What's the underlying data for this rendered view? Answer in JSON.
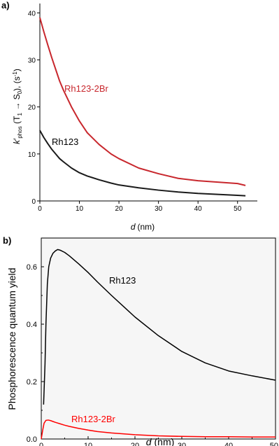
{
  "chart_data": [
    {
      "panel": "a)",
      "type": "line",
      "xlabel_italic": "d",
      "xlabel_unit": "(nm)",
      "ylabel_parts": {
        "k": "k",
        "prime": "′",
        "sub": "phos",
        "open": " (",
        "T": "T",
        "T_sub": "1",
        "arrow": " → ",
        "S": "S",
        "S_sub": "0",
        "close": "), (s",
        "exp": "-1",
        "end": ")"
      },
      "xlim": [
        0,
        55
      ],
      "ylim": [
        0,
        42
      ],
      "xticks": [
        0,
        10,
        20,
        30,
        40,
        50
      ],
      "yticks": [
        0,
        10,
        20,
        30,
        40
      ],
      "series": [
        {
          "name": "Rh123-2Br",
          "color": "#c8272d",
          "x": [
            0,
            1,
            2,
            3,
            4,
            5,
            6,
            8,
            10,
            12,
            15,
            18,
            20,
            25,
            30,
            35,
            40,
            45,
            50,
            52
          ],
          "y": [
            39,
            36,
            33.2,
            30.5,
            28,
            25.5,
            23.5,
            20,
            17,
            14.5,
            12,
            10,
            9,
            7,
            5.8,
            4.8,
            4.3,
            4,
            3.7,
            3.3
          ]
        },
        {
          "name": "Rh123",
          "color": "#1a1a1a",
          "x": [
            0,
            1,
            2,
            3,
            4,
            5,
            6,
            8,
            10,
            12,
            15,
            18,
            20,
            25,
            30,
            35,
            40,
            45,
            50,
            52
          ],
          "y": [
            15,
            13.5,
            12.2,
            11,
            10,
            9,
            8.3,
            7,
            6,
            5.3,
            4.5,
            3.8,
            3.4,
            2.8,
            2.3,
            1.9,
            1.6,
            1.4,
            1.2,
            1.1
          ]
        }
      ]
    },
    {
      "panel": "b)",
      "type": "line",
      "xlabel_italic": "d",
      "xlabel_unit": "(nm)",
      "ylabel": "Phosphorescence quantum yield",
      "xlim": [
        0,
        50
      ],
      "ylim": [
        0,
        0.7
      ],
      "xticks": [
        0,
        10,
        20,
        30,
        40,
        50
      ],
      "xtick_labels": [
        "0",
        "10",
        "20",
        "30",
        "40",
        "50"
      ],
      "yticks": [
        0,
        0.2,
        0.4,
        0.6
      ],
      "ytick_labels": [
        "0.0",
        "0.2",
        "0.4",
        "0.6"
      ],
      "series": [
        {
          "name": "Rh123",
          "color": "#000000",
          "x": [
            0.5,
            0.8,
            1,
            1.3,
            1.6,
            2,
            2.5,
            3,
            3.5,
            4,
            5,
            6,
            8,
            10,
            12,
            15,
            18,
            20,
            25,
            30,
            35,
            40,
            45,
            50
          ],
          "y": [
            0.12,
            0.26,
            0.4,
            0.54,
            0.6,
            0.63,
            0.647,
            0.655,
            0.66,
            0.658,
            0.65,
            0.638,
            0.61,
            0.58,
            0.547,
            0.5,
            0.455,
            0.425,
            0.36,
            0.305,
            0.265,
            0.237,
            0.22,
            0.205
          ]
        },
        {
          "name": "Rh123-2Br",
          "color": "#ff0000",
          "x": [
            0,
            0.3,
            0.6,
            1,
            1.5,
            2,
            2.5,
            3,
            4,
            5,
            6,
            8,
            10,
            12,
            15,
            20,
            25,
            30,
            35,
            40,
            45,
            50
          ],
          "y": [
            0.0,
            0.03,
            0.055,
            0.065,
            0.066,
            0.064,
            0.061,
            0.058,
            0.053,
            0.048,
            0.044,
            0.037,
            0.031,
            0.026,
            0.021,
            0.015,
            0.011,
            0.009,
            0.008,
            0.008,
            0.007,
            0.007
          ]
        }
      ]
    }
  ]
}
